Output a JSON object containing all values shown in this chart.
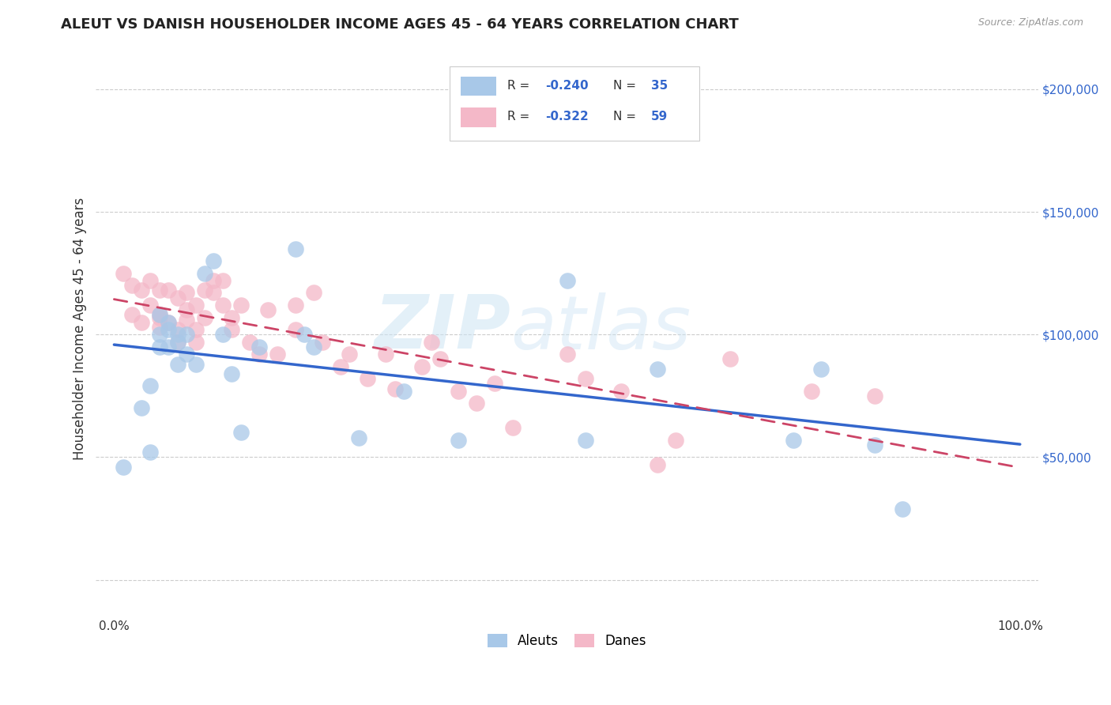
{
  "title": "ALEUT VS DANISH HOUSEHOLDER INCOME AGES 45 - 64 YEARS CORRELATION CHART",
  "source": "Source: ZipAtlas.com",
  "ylabel": "Householder Income Ages 45 - 64 years",
  "watermark_zip": "ZIP",
  "watermark_atlas": "atlas",
  "legend_label1": "Aleuts",
  "legend_label2": "Danes",
  "legend_R1_val": "-0.240",
  "legend_N1_val": "35",
  "legend_R2_val": "-0.322",
  "legend_N2_val": "59",
  "color_aleuts": "#a8c8e8",
  "color_danes": "#f4b8c8",
  "color_line_aleuts": "#3366cc",
  "color_line_danes": "#cc4466",
  "yticks": [
    0,
    50000,
    100000,
    150000,
    200000
  ],
  "ytick_labels": [
    "",
    "$50,000",
    "$100,000",
    "$150,000",
    "$200,000"
  ],
  "ylim": [
    -15000,
    220000
  ],
  "xlim": [
    -0.02,
    1.02
  ],
  "aleuts_x": [
    0.01,
    0.03,
    0.04,
    0.04,
    0.05,
    0.05,
    0.05,
    0.06,
    0.06,
    0.06,
    0.07,
    0.07,
    0.07,
    0.08,
    0.08,
    0.09,
    0.1,
    0.11,
    0.12,
    0.13,
    0.14,
    0.16,
    0.2,
    0.21,
    0.22,
    0.27,
    0.32,
    0.38,
    0.5,
    0.52,
    0.6,
    0.75,
    0.78,
    0.84,
    0.87
  ],
  "aleuts_y": [
    46000,
    70000,
    52000,
    79000,
    100000,
    95000,
    108000,
    105000,
    102000,
    95000,
    100000,
    97000,
    88000,
    100000,
    92000,
    88000,
    125000,
    130000,
    100000,
    84000,
    60000,
    95000,
    135000,
    100000,
    95000,
    58000,
    77000,
    57000,
    122000,
    57000,
    86000,
    57000,
    86000,
    55000,
    29000
  ],
  "danes_x": [
    0.01,
    0.02,
    0.02,
    0.03,
    0.03,
    0.04,
    0.04,
    0.05,
    0.05,
    0.05,
    0.05,
    0.06,
    0.06,
    0.07,
    0.07,
    0.07,
    0.08,
    0.08,
    0.08,
    0.09,
    0.09,
    0.09,
    0.1,
    0.1,
    0.11,
    0.11,
    0.12,
    0.12,
    0.13,
    0.13,
    0.14,
    0.15,
    0.16,
    0.17,
    0.18,
    0.2,
    0.2,
    0.22,
    0.23,
    0.25,
    0.26,
    0.28,
    0.3,
    0.31,
    0.34,
    0.35,
    0.36,
    0.38,
    0.4,
    0.42,
    0.44,
    0.5,
    0.52,
    0.56,
    0.6,
    0.62,
    0.68,
    0.77,
    0.84
  ],
  "danes_y": [
    125000,
    120000,
    108000,
    118000,
    105000,
    122000,
    112000,
    118000,
    108000,
    107000,
    103000,
    118000,
    105000,
    115000,
    102000,
    97000,
    117000,
    110000,
    106000,
    112000,
    102000,
    97000,
    118000,
    107000,
    122000,
    117000,
    122000,
    112000,
    107000,
    102000,
    112000,
    97000,
    92000,
    110000,
    92000,
    112000,
    102000,
    117000,
    97000,
    87000,
    92000,
    82000,
    92000,
    78000,
    87000,
    97000,
    90000,
    77000,
    72000,
    80000,
    62000,
    92000,
    82000,
    77000,
    47000,
    57000,
    90000,
    77000,
    75000
  ],
  "background_color": "#ffffff",
  "grid_color": "#cccccc",
  "title_fontsize": 13,
  "source_fontsize": 9,
  "tick_fontsize": 11,
  "ylabel_fontsize": 12
}
